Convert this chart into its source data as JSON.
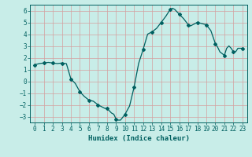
{
  "title": "",
  "xlabel": "Humidex (Indice chaleur)",
  "bg_color": "#c8ede8",
  "grid_color": "#d4a0a0",
  "line_color": "#006060",
  "marker_color": "#006060",
  "xlim": [
    -0.5,
    23.5
  ],
  "ylim": [
    -3.5,
    6.5
  ],
  "yticks": [
    -3,
    -2,
    -1,
    0,
    1,
    2,
    3,
    4,
    5,
    6
  ],
  "xticks": [
    0,
    1,
    2,
    3,
    4,
    5,
    6,
    7,
    8,
    9,
    10,
    11,
    12,
    13,
    14,
    15,
    16,
    17,
    18,
    19,
    20,
    21,
    22,
    23
  ],
  "x": [
    0,
    0.5,
    1,
    1.5,
    2,
    2.5,
    3,
    3.5,
    4,
    4.25,
    4.5,
    5,
    5.5,
    6,
    6.5,
    7,
    7.25,
    7.5,
    7.75,
    8,
    8.25,
    8.5,
    8.75,
    9,
    9.25,
    9.5,
    10,
    10.5,
    11,
    11.5,
    12,
    12.5,
    13,
    13.5,
    14,
    14.5,
    15,
    15.25,
    15.5,
    16,
    16.5,
    17,
    17.25,
    17.5,
    18,
    18.5,
    19,
    19.5,
    20,
    20.25,
    20.5,
    21,
    21.25,
    21.5,
    21.75,
    22,
    22.25,
    22.5,
    23
  ],
  "y": [
    1.4,
    1.5,
    1.55,
    1.6,
    1.55,
    1.5,
    1.55,
    1.5,
    0.2,
    0.0,
    -0.2,
    -0.9,
    -1.3,
    -1.6,
    -1.7,
    -2.0,
    -2.1,
    -2.2,
    -2.3,
    -2.3,
    -2.5,
    -2.7,
    -2.8,
    -3.2,
    -3.3,
    -3.3,
    -2.8,
    -2.1,
    -0.5,
    1.5,
    2.7,
    4.0,
    4.2,
    4.5,
    5.0,
    5.5,
    6.1,
    6.2,
    6.1,
    5.7,
    5.3,
    4.8,
    4.7,
    4.8,
    5.0,
    4.9,
    4.8,
    4.3,
    3.2,
    2.9,
    2.5,
    2.2,
    2.8,
    3.0,
    2.8,
    2.5,
    2.5,
    2.8,
    2.8
  ],
  "marker_x": [
    0,
    1,
    2,
    3,
    4,
    5,
    6,
    7,
    8,
    9,
    10,
    11,
    12,
    13,
    14,
    15,
    16,
    17,
    18,
    19,
    20,
    21,
    22,
    23
  ],
  "marker_y": [
    1.4,
    1.55,
    1.55,
    1.5,
    0.2,
    -0.9,
    -1.6,
    -2.0,
    -2.3,
    -3.2,
    -2.8,
    -0.5,
    2.7,
    4.2,
    5.0,
    6.1,
    5.7,
    4.8,
    5.0,
    4.8,
    3.2,
    2.2,
    2.5,
    2.8
  ]
}
